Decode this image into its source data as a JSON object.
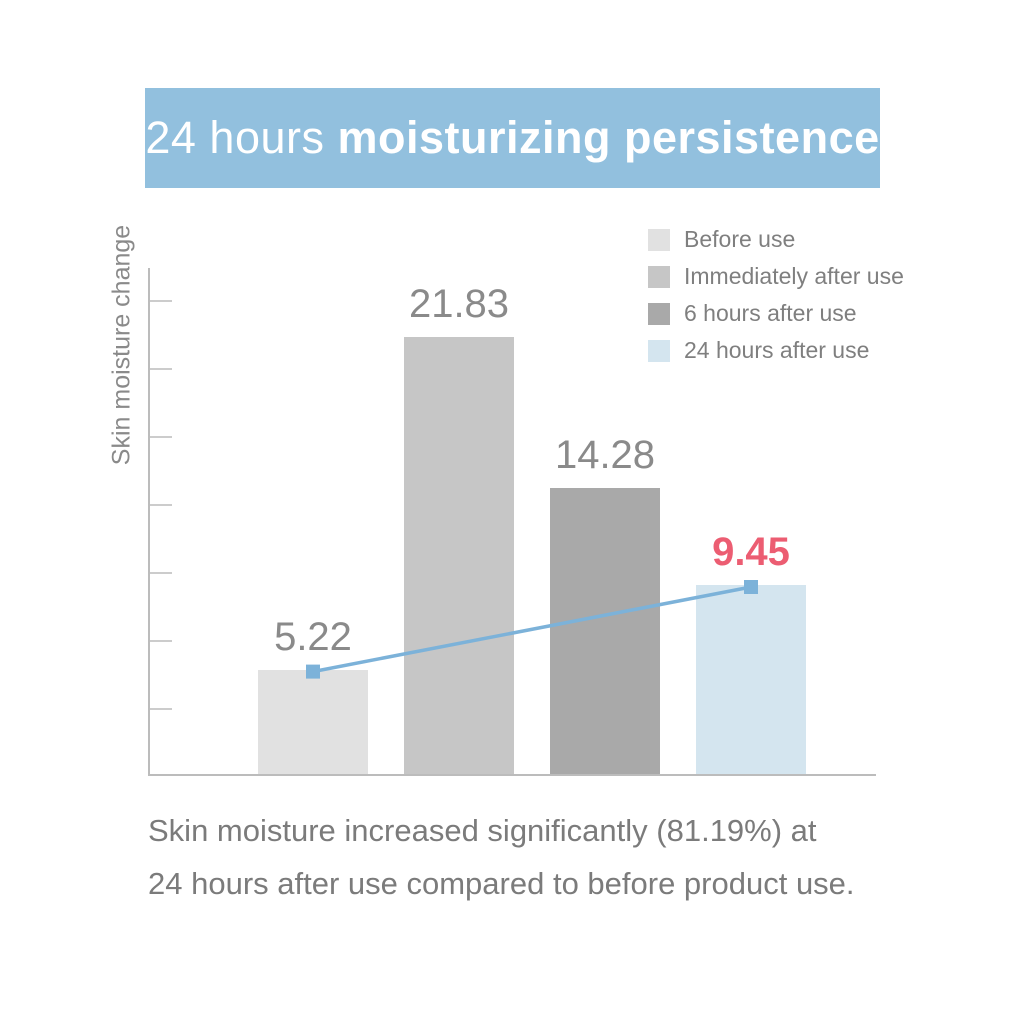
{
  "header": {
    "title_light": "24 hours",
    "title_bold": "moisturizing persistence",
    "bg_color": "#92c0de"
  },
  "chart_data": {
    "type": "bar",
    "title": "24 hours moisturizing persistence",
    "ylabel": "Skin moisture change",
    "xlabel": "",
    "categories": [
      "Before use",
      "Immediately after use",
      "6 hours after use",
      "24 hours after use"
    ],
    "values": [
      5.22,
      21.83,
      14.28,
      9.45
    ],
    "bar_colors": [
      "#e1e1e1",
      "#c6c6c6",
      "#a9a9a9",
      "#d4e5ef"
    ],
    "value_label_colors": [
      "#8a8a8a",
      "#8a8a8a",
      "#8a8a8a",
      "#ec5d72"
    ],
    "highlight_index": 3,
    "highlight_color": "#ec5d72",
    "trend_line": {
      "from_category": "Before use",
      "to_category": "24 hours after use",
      "from_value": 5.22,
      "to_value": 9.45,
      "color": "#7cb2d9",
      "marker": "square"
    },
    "legend_position": "top-right",
    "grid": false,
    "ylim": [
      0,
      25
    ],
    "y_tick_labels_shown": false,
    "annotation": "Skin moisture increased significantly (81.19%) at 24 hours after use compared to before product use."
  },
  "legend": {
    "items": [
      {
        "label": "Before use",
        "color": "#e1e1e1"
      },
      {
        "label": "Immediately after use",
        "color": "#c6c6c6"
      },
      {
        "label": "6 hours after use",
        "color": "#a9a9a9"
      },
      {
        "label": "24 hours after use",
        "color": "#d4e5ef"
      }
    ]
  },
  "caption": {
    "line1": "Skin moisture increased significantly (81.19%) at",
    "line2": "24 hours after use compared to before product use."
  }
}
